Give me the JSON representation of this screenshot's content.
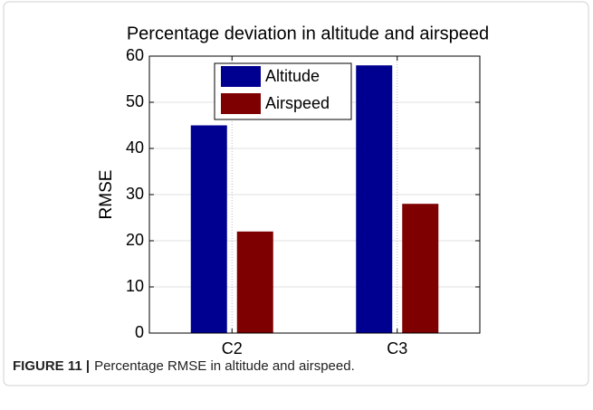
{
  "chart_data": {
    "type": "bar",
    "title": "Percentage deviation in altitude and airspeed",
    "ylabel": "RMSE",
    "categories": [
      "C2",
      "C3"
    ],
    "series": [
      {
        "name": "Altitude",
        "color": "#000090",
        "values": [
          45,
          58
        ]
      },
      {
        "name": "Airspeed",
        "color": "#7f0000",
        "values": [
          22,
          28
        ]
      }
    ],
    "ylim": [
      0,
      60
    ],
    "yticks": [
      0,
      10,
      20,
      30,
      40,
      50,
      60
    ],
    "grid": true,
    "legend": "top"
  },
  "caption": {
    "label": "FIGURE 11 |",
    "text": "Percentage RMSE in altitude and airspeed."
  }
}
